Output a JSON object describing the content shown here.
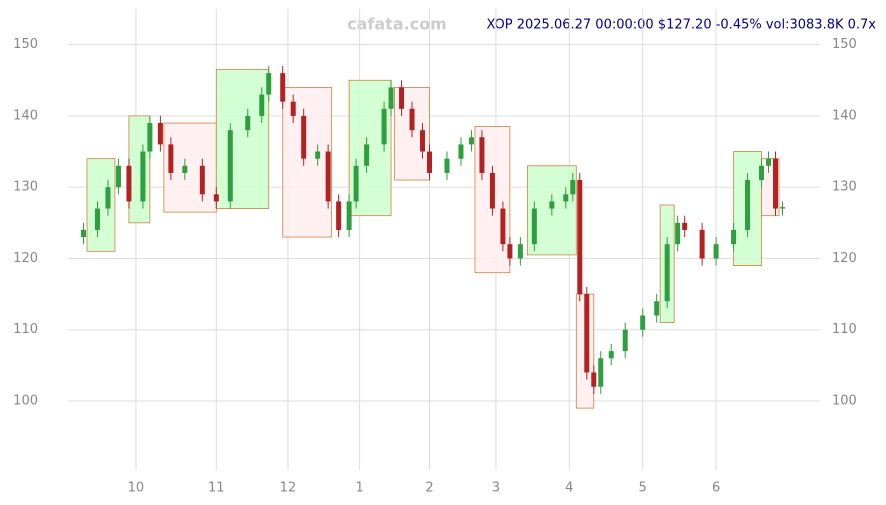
{
  "chart_data": {
    "type": "candlestick",
    "title": "XOP 2025.06.27 00:00:00 $127.20 -0.45% vol:3083.8K 0.7x",
    "watermark": "cafata.com",
    "xlim": [
      -1,
      201
    ],
    "ylim": [
      92,
      155
    ],
    "yticks": [
      100,
      110,
      120,
      130,
      140,
      150
    ],
    "xticks": [
      {
        "value": 15,
        "label": "10"
      },
      {
        "value": 38,
        "label": "11"
      },
      {
        "value": 58.5,
        "label": "12"
      },
      {
        "value": 79,
        "label": "1"
      },
      {
        "value": 99,
        "label": "2"
      },
      {
        "value": 118,
        "label": "3"
      },
      {
        "value": 139,
        "label": "4"
      },
      {
        "value": 160,
        "label": "5"
      },
      {
        "value": 181,
        "label": "6"
      }
    ],
    "grid": true,
    "up_color": "#2e9e3e",
    "down_color": "#b22222",
    "candles": {
      "x": [
        0,
        4,
        7,
        10,
        13,
        17,
        19,
        22,
        25,
        29,
        34,
        38,
        42,
        47,
        51,
        53,
        57,
        60,
        63,
        67,
        70,
        73,
        76,
        78,
        81,
        86,
        88,
        91,
        94,
        97,
        99,
        104,
        108,
        111,
        114,
        117,
        120,
        122,
        125,
        129,
        134,
        138,
        140,
        142,
        144,
        146,
        148,
        151,
        155,
        160,
        164,
        167,
        170,
        172,
        177,
        181,
        186,
        190,
        194,
        196,
        198,
        200
      ],
      "open": [
        123,
        124,
        127,
        130,
        133,
        128,
        135,
        139,
        136,
        132,
        133,
        129,
        128,
        138,
        140,
        143,
        146,
        142,
        140,
        134,
        135,
        128,
        124,
        128,
        133,
        136,
        141,
        144,
        141,
        138,
        135,
        132,
        134,
        136,
        137,
        132,
        127,
        122,
        120,
        122,
        127,
        128,
        129,
        131,
        115,
        104,
        102,
        106,
        107,
        110,
        112,
        114,
        122,
        125,
        124,
        120,
        122,
        124,
        131,
        133,
        134,
        127
      ],
      "high": [
        125,
        128,
        131,
        134,
        134,
        136,
        140,
        140,
        137,
        134,
        134,
        130,
        139,
        141,
        144,
        147,
        147,
        143,
        141,
        136,
        136,
        129,
        129,
        134,
        137,
        142,
        145,
        145,
        142,
        139,
        136,
        135,
        137,
        138,
        138,
        133,
        128,
        123,
        123,
        128,
        129,
        130,
        132,
        132,
        116,
        105,
        107,
        108,
        111,
        113,
        115,
        123,
        126,
        126,
        125,
        123,
        125,
        132,
        134,
        135,
        135,
        128
      ],
      "low": [
        122,
        123,
        126,
        129,
        127,
        127,
        134,
        135,
        131,
        131,
        128,
        127,
        127,
        137,
        139,
        142,
        141,
        139,
        133,
        133,
        127,
        123,
        123,
        127,
        132,
        135,
        140,
        140,
        137,
        134,
        131,
        131,
        133,
        135,
        131,
        126,
        121,
        119,
        119,
        121,
        126,
        127,
        128,
        114,
        103,
        101,
        101,
        105,
        106,
        109,
        111,
        113,
        121,
        123,
        119,
        119,
        121,
        123,
        130,
        132,
        126,
        126
      ],
      "close": [
        124,
        127,
        130,
        133,
        128,
        135,
        139,
        136,
        132,
        133,
        129,
        128,
        138,
        140,
        143,
        146,
        142,
        140,
        134,
        135,
        128,
        124,
        128,
        133,
        136,
        141,
        144,
        141,
        138,
        135,
        132,
        134,
        136,
        137,
        132,
        127,
        122,
        120,
        122,
        127,
        128,
        129,
        131,
        115,
        104,
        102,
        106,
        107,
        110,
        112,
        114,
        122,
        125,
        124,
        120,
        122,
        124,
        131,
        133,
        134,
        127,
        127.2
      ]
    },
    "boxes": [
      {
        "x0": 1,
        "x1": 9,
        "low": 121,
        "high": 134,
        "color": "#ccffcc"
      },
      {
        "x0": 13,
        "x1": 19,
        "low": 125,
        "high": 140,
        "color": "#ccffcc"
      },
      {
        "x0": 23,
        "x1": 38,
        "low": 126.5,
        "high": 139,
        "color": "#ffeeee"
      },
      {
        "x0": 38,
        "x1": 53,
        "low": 127,
        "high": 146.5,
        "color": "#ccffcc"
      },
      {
        "x0": 57,
        "x1": 71,
        "low": 123,
        "high": 144,
        "color": "#ffeeee"
      },
      {
        "x0": 76,
        "x1": 88,
        "low": 126,
        "high": 145,
        "color": "#ccffcc"
      },
      {
        "x0": 89,
        "x1": 99,
        "low": 131,
        "high": 144,
        "color": "#ffeeee"
      },
      {
        "x0": 112,
        "x1": 122,
        "low": 118,
        "high": 138.5,
        "color": "#ffeeee"
      },
      {
        "x0": 127,
        "x1": 141,
        "low": 120.5,
        "high": 133,
        "color": "#ccffcc"
      },
      {
        "x0": 141,
        "x1": 146,
        "low": 99,
        "high": 115,
        "color": "#ffeeee"
      },
      {
        "x0": 165,
        "x1": 169,
        "low": 111,
        "high": 127.5,
        "color": "#ccffcc"
      },
      {
        "x0": 186,
        "x1": 194,
        "low": 119,
        "high": 135,
        "color": "#ccffcc"
      },
      {
        "x0": 194,
        "x1": 199,
        "low": 126,
        "high": 134,
        "color": "#ffeeee"
      }
    ]
  }
}
